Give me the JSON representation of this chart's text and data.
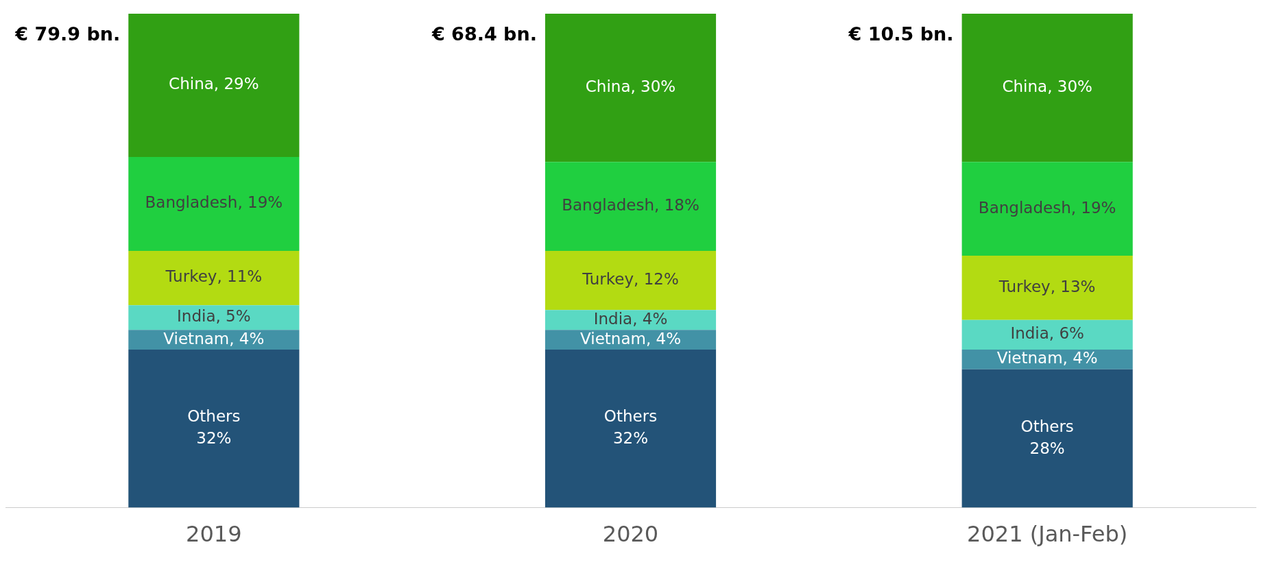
{
  "chart_data": {
    "type": "bar",
    "stacked": true,
    "legend": false,
    "grid": false,
    "categories": [
      "2019",
      "2020",
      "2021 (Jan-Feb)"
    ],
    "series": [
      {
        "color": "#235378",
        "values": [
          32,
          32,
          28
        ],
        "value_labels": [
          "Others\n32%",
          "Others\n32%",
          "Others\n28%"
        ]
      },
      {
        "color": "#4292a6",
        "values": [
          4,
          4,
          4
        ],
        "value_labels": [
          "Vietnam, 4%",
          "Vietnam, 4%",
          "Vietnam, 4%"
        ]
      },
      {
        "color": "#5ad9c3",
        "values": [
          5,
          4,
          6
        ],
        "value_labels": [
          "India, 5%",
          "India, 4%",
          "India, 6%"
        ]
      },
      {
        "color": "#b3db12",
        "values": [
          11,
          12,
          13
        ],
        "value_labels": [
          "Turkey, 11%",
          "Turkey, 12%",
          "Turkey, 13%"
        ]
      },
      {
        "color": "#20cf40",
        "values": [
          19,
          18,
          19
        ],
        "value_labels": [
          "Bangladesh, 19%",
          "Bangladesh, 18%",
          "Bangladesh, 19%"
        ]
      },
      {
        "color": "#31a014",
        "values": [
          29,
          30,
          30
        ],
        "value_labels": [
          "China, 29%",
          "China, 30%",
          "China, 30%"
        ]
      }
    ],
    "annotations": [
      "€ 79.9 bn.",
      "€ 68.4 bn.",
      "€ 10.5 bn."
    ]
  }
}
